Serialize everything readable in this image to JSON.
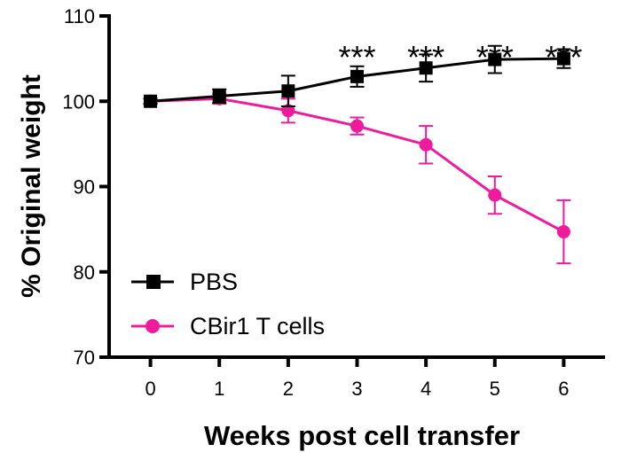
{
  "chart_data": {
    "type": "line",
    "title": "",
    "xlabel": "Weeks post cell transfer",
    "ylabel": "% Original weight",
    "x": [
      0,
      1,
      2,
      3,
      4,
      5,
      6
    ],
    "xlim": [
      -0.6,
      6.6
    ],
    "ylim": [
      70,
      110
    ],
    "x_ticks": [
      "0",
      "1",
      "2",
      "3",
      "4",
      "5",
      "6"
    ],
    "y_ticks": [
      "70",
      "80",
      "90",
      "100",
      "110"
    ],
    "grid": false,
    "legend_position": "bottom-left",
    "series": [
      {
        "name": "PBS",
        "marker": "square",
        "color": "#000000",
        "values": [
          100,
          100.6,
          101.2,
          102.9,
          103.9,
          104.9,
          105.0
        ],
        "errors": [
          0.3,
          0.8,
          1.8,
          1.2,
          1.6,
          1.6,
          1.1
        ]
      },
      {
        "name": "CBir1 T cells",
        "marker": "circle",
        "color": "#ee1c9c",
        "values": [
          100,
          100.3,
          98.9,
          97.1,
          94.9,
          89.0,
          84.7
        ],
        "errors": [
          0.3,
          0.6,
          1.4,
          1.0,
          2.2,
          2.2,
          3.7
        ]
      }
    ],
    "annotations": [
      {
        "x": 3,
        "text": "***"
      },
      {
        "x": 4,
        "text": "***"
      },
      {
        "x": 5,
        "text": "***"
      },
      {
        "x": 6,
        "text": "***"
      }
    ]
  }
}
